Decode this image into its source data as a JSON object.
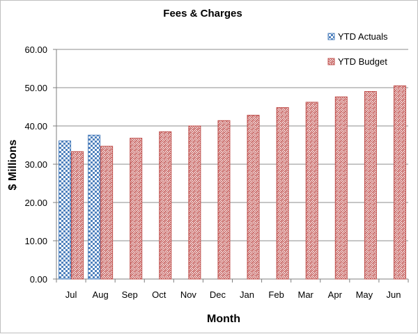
{
  "chart_data": {
    "type": "bar",
    "title": "Fees & Charges",
    "xlabel": "Month",
    "ylabel": "$ Millions",
    "categories": [
      "Jul",
      "Aug",
      "Sep",
      "Oct",
      "Nov",
      "Dec",
      "Jan",
      "Feb",
      "Mar",
      "Apr",
      "May",
      "Jun"
    ],
    "ylim": [
      0,
      60
    ],
    "yticks": [
      "0.00",
      "10.00",
      "20.00",
      "30.00",
      "40.00",
      "50.00",
      "60.00"
    ],
    "grid": true,
    "legend_position": "top-right",
    "series": [
      {
        "name": "YTD Actuals",
        "color": "#4f81bd",
        "pattern": "checker",
        "values": [
          36.1,
          37.6,
          null,
          null,
          null,
          null,
          null,
          null,
          null,
          null,
          null,
          null
        ]
      },
      {
        "name": "YTD Budget",
        "color": "#c0504d",
        "pattern": "weave",
        "values": [
          33.3,
          34.7,
          36.8,
          38.5,
          40.0,
          41.4,
          42.8,
          44.8,
          46.2,
          47.6,
          49.0,
          50.5
        ]
      }
    ]
  }
}
